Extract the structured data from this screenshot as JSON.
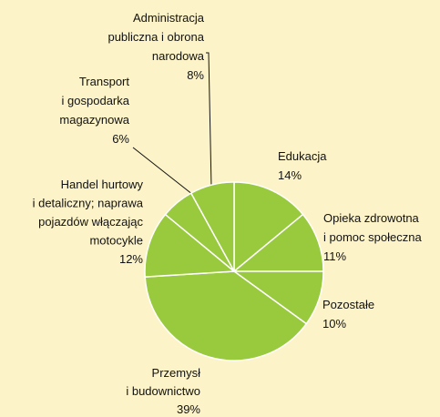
{
  "chart_data": {
    "type": "pie",
    "categories": [
      "Edukacja",
      "Opieka zdrowotna\ni pomoc społeczna",
      "Pozostałe",
      "Przemysł\ni budownictwo",
      "Handel hurtowy\ni detaliczny; naprawa\npojazdów włączając\nmotocykle",
      "Transport\ni gospodarka\nmagazynowa",
      "Administracja\npubliczna i obrona\nnarodowa"
    ],
    "values": [
      14,
      11,
      10,
      39,
      12,
      6,
      8
    ],
    "value_labels": [
      "14%",
      "11%",
      "10%",
      "39%",
      "12%",
      "6%",
      "8%"
    ],
    "color": "#99c93c"
  }
}
